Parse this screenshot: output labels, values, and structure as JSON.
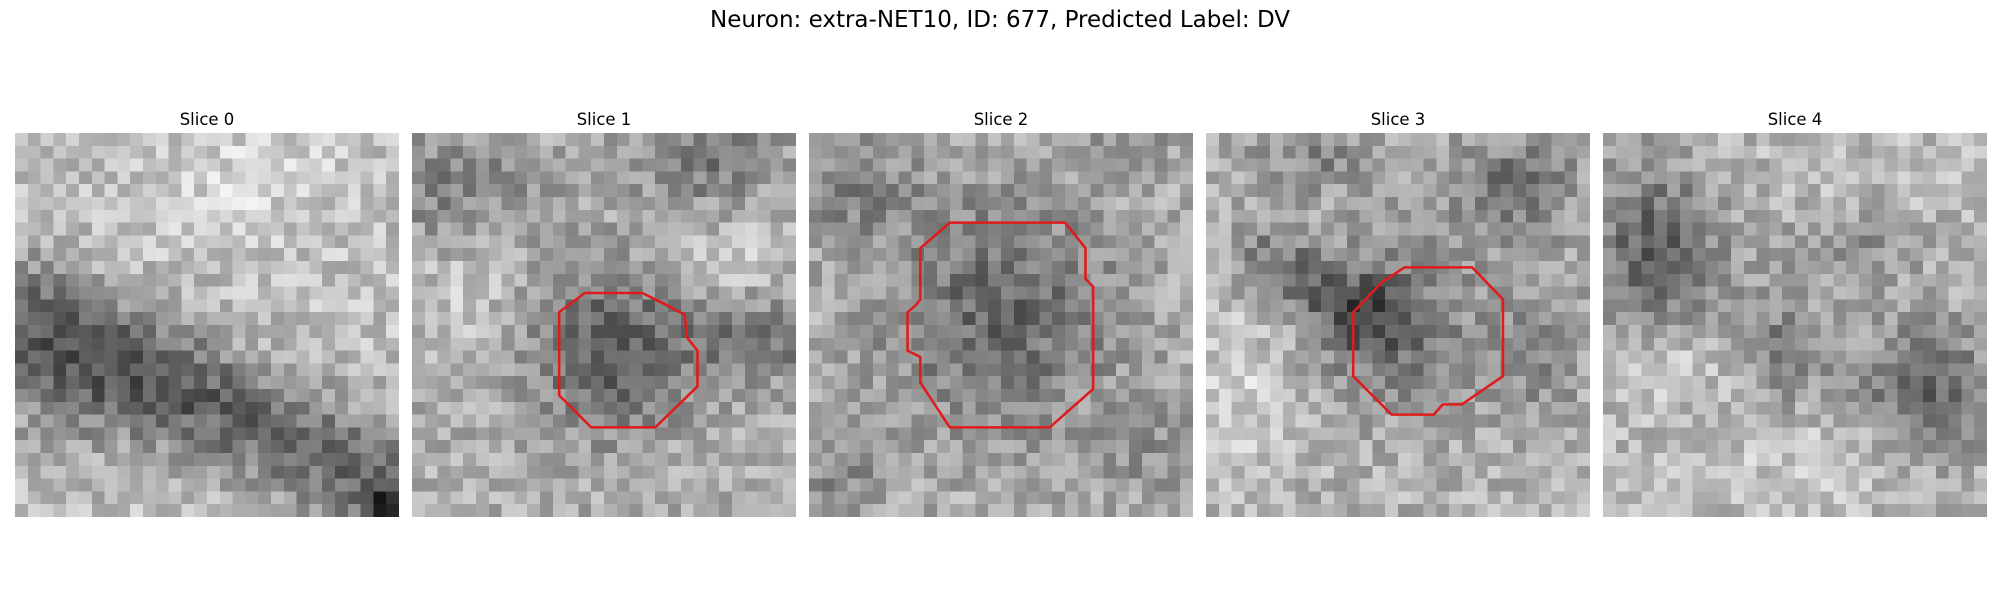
{
  "figure": {
    "title": "Neuron: extra-NET10, ID: 677, Predicted Label: DV"
  },
  "colors": {
    "roi_outline": "#e01b1b",
    "colormap": "grayscale"
  },
  "slices": [
    {
      "title": "Slice 0",
      "has_roi": false
    },
    {
      "title": "Slice 1",
      "has_roi": true
    },
    {
      "title": "Slice 2",
      "has_roi": true
    },
    {
      "title": "Slice 3",
      "has_roi": true
    },
    {
      "title": "Slice 4",
      "has_roi": false
    }
  ]
}
